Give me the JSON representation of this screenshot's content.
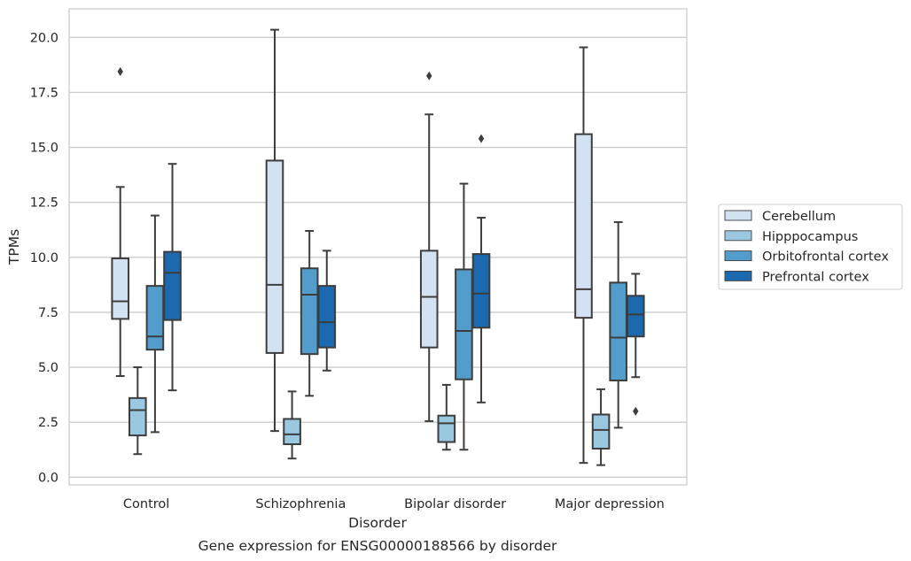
{
  "chart_data": {
    "type": "boxplot",
    "title": "Gene expression for ENSG00000188566 by disorder",
    "xlabel": "Disorder",
    "ylabel": "TPMs",
    "ylim": [
      -0.35,
      21.3
    ],
    "yticks": [
      "0.0",
      "2.5",
      "5.0",
      "7.5",
      "10.0",
      "12.5",
      "15.0",
      "17.5",
      "20.0"
    ],
    "ytick_values": [
      0,
      2.5,
      5,
      7.5,
      10,
      12.5,
      15,
      17.5,
      20
    ],
    "categories": [
      "Control",
      "Schizophrenia",
      "Bipolar disorder",
      "Major depression"
    ],
    "grid": "horizontal",
    "legend_position": "right",
    "series": [
      {
        "name": "Cerebellum",
        "color": "#d2e2f2",
        "boxes": [
          {
            "whislo": 4.6,
            "q1": 7.2,
            "med": 8.0,
            "q3": 9.95,
            "whishi": 13.2,
            "fliers": [
              18.45
            ]
          },
          {
            "whislo": 2.1,
            "q1": 5.65,
            "med": 8.75,
            "q3": 14.4,
            "whishi": 20.35,
            "fliers": []
          },
          {
            "whislo": 2.55,
            "q1": 5.9,
            "med": 8.2,
            "q3": 10.3,
            "whishi": 16.5,
            "fliers": [
              18.25
            ]
          },
          {
            "whislo": 0.65,
            "q1": 7.25,
            "med": 8.55,
            "q3": 15.6,
            "whishi": 19.55,
            "fliers": []
          }
        ]
      },
      {
        "name": "Hipppocampus",
        "color": "#9ac8e0",
        "boxes": [
          {
            "whislo": 1.05,
            "q1": 1.9,
            "med": 3.05,
            "q3": 3.6,
            "whishi": 5.0,
            "fliers": []
          },
          {
            "whislo": 0.85,
            "q1": 1.5,
            "med": 1.95,
            "q3": 2.65,
            "whishi": 3.9,
            "fliers": []
          },
          {
            "whislo": 1.25,
            "q1": 1.6,
            "med": 2.45,
            "q3": 2.8,
            "whishi": 4.2,
            "fliers": []
          },
          {
            "whislo": 0.55,
            "q1": 1.3,
            "med": 2.15,
            "q3": 2.85,
            "whishi": 4.0,
            "fliers": []
          }
        ]
      },
      {
        "name": "Orbitofrontal cortex",
        "color": "#529dcc",
        "boxes": [
          {
            "whislo": 2.05,
            "q1": 5.8,
            "med": 6.4,
            "q3": 8.7,
            "whishi": 11.9,
            "fliers": []
          },
          {
            "whislo": 3.7,
            "q1": 5.6,
            "med": 8.3,
            "q3": 9.5,
            "whishi": 11.2,
            "fliers": []
          },
          {
            "whislo": 1.25,
            "q1": 4.45,
            "med": 6.65,
            "q3": 9.45,
            "whishi": 13.35,
            "fliers": []
          },
          {
            "whislo": 2.25,
            "q1": 4.4,
            "med": 6.35,
            "q3": 8.85,
            "whishi": 11.6,
            "fliers": []
          }
        ]
      },
      {
        "name": "Prefrontal cortex",
        "color": "#1b69af",
        "boxes": [
          {
            "whislo": 3.95,
            "q1": 7.15,
            "med": 9.3,
            "q3": 10.25,
            "whishi": 14.25,
            "fliers": []
          },
          {
            "whislo": 4.85,
            "q1": 5.9,
            "med": 7.05,
            "q3": 8.7,
            "whishi": 10.3,
            "fliers": []
          },
          {
            "whislo": 3.4,
            "q1": 6.8,
            "med": 8.35,
            "q3": 10.15,
            "whishi": 11.8,
            "fliers": [
              15.4
            ]
          },
          {
            "whislo": 4.55,
            "q1": 6.4,
            "med": 7.4,
            "q3": 8.25,
            "whishi": 9.25,
            "fliers": [
              3.0
            ]
          }
        ]
      }
    ]
  }
}
